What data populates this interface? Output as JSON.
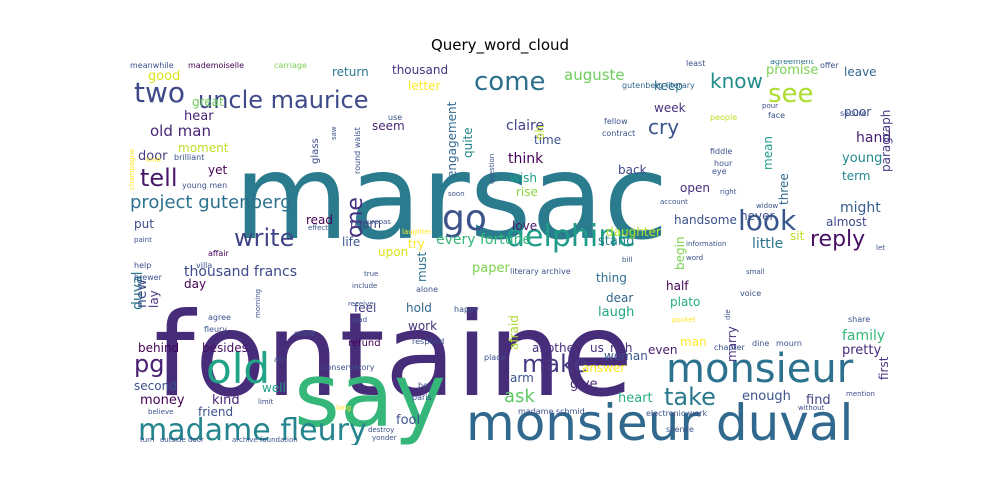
{
  "figure": {
    "title": "Query_word_cloud"
  },
  "palette": [
    "#440154",
    "#482878",
    "#3e4989",
    "#31688e",
    "#26828e",
    "#1f9e89",
    "#35b779",
    "#6ece58",
    "#b5de2b",
    "#fde725"
  ],
  "words": [
    {
      "text": "marsac",
      "weight": 100,
      "color": "#2a7b8e"
    },
    {
      "text": "fontaine",
      "weight": 96,
      "color": "#472c7a"
    },
    {
      "text": "say",
      "weight": 64,
      "color": "#35b779"
    },
    {
      "text": "monsieur duval",
      "weight": 36,
      "color": "#31688e"
    },
    {
      "text": "old",
      "weight": 30,
      "color": "#20a386"
    },
    {
      "text": "monsieur",
      "weight": 30,
      "color": "#2c728e"
    },
    {
      "text": "go",
      "weight": 26,
      "color": "#3b528b"
    },
    {
      "text": "madame fleury",
      "weight": 24,
      "color": "#25858e"
    },
    {
      "text": "delphine",
      "weight": 24,
      "color": "#1e9c89"
    },
    {
      "text": "look",
      "weight": 22,
      "color": "#39568c"
    },
    {
      "text": "uncle maurice",
      "weight": 20,
      "color": "#3e4a89"
    },
    {
      "text": "come",
      "weight": 20,
      "color": "#2d708e"
    },
    {
      "text": "see",
      "weight": 20,
      "color": "#addc30"
    },
    {
      "text": "two",
      "weight": 20,
      "color": "#3e4989"
    },
    {
      "text": "make",
      "weight": 18,
      "color": "#453781"
    },
    {
      "text": "take",
      "weight": 18,
      "color": "#2a788e"
    },
    {
      "text": "pg",
      "weight": 18,
      "color": "#481f70"
    },
    {
      "text": "write",
      "weight": 18,
      "color": "#404588"
    },
    {
      "text": "tell",
      "weight": 18,
      "color": "#481769"
    },
    {
      "text": "one",
      "weight": 16,
      "color": "#46327e"
    },
    {
      "text": "reply",
      "weight": 16,
      "color": "#471063"
    },
    {
      "text": "know",
      "weight": 16,
      "color": "#228c8d"
    },
    {
      "text": "cry",
      "weight": 16,
      "color": "#3b528b"
    },
    {
      "text": "ask",
      "weight": 14,
      "color": "#5ec962"
    },
    {
      "text": "project gutenberg",
      "weight": 14,
      "color": "#2c728e"
    },
    {
      "text": "old man",
      "weight": 12,
      "color": "#482475"
    },
    {
      "text": "auguste",
      "weight": 12,
      "color": "#6ccd5a"
    },
    {
      "text": "promise",
      "weight": 11,
      "color": "#7ad151"
    },
    {
      "text": "thousand francs",
      "weight": 11,
      "color": "#3e4a89"
    },
    {
      "text": "every fortune",
      "weight": 11,
      "color": "#35b779"
    },
    {
      "text": "think",
      "weight": 11,
      "color": "#440154"
    },
    {
      "text": "claire",
      "weight": 11,
      "color": "#414487"
    },
    {
      "text": "hand",
      "weight": 11,
      "color": "#482173"
    },
    {
      "text": "good",
      "weight": 11,
      "color": "#dde318"
    },
    {
      "text": "hear",
      "weight": 11,
      "color": "#482576"
    },
    {
      "text": "door",
      "weight": 11,
      "color": "#433e85"
    },
    {
      "text": "little",
      "weight": 11,
      "color": "#2b748e"
    },
    {
      "text": "might",
      "weight": 11,
      "color": "#355e8d"
    },
    {
      "text": "young",
      "weight": 11,
      "color": "#23898e"
    },
    {
      "text": "family",
      "weight": 11,
      "color": "#37b878"
    },
    {
      "text": "give",
      "weight": 11,
      "color": "#482878"
    },
    {
      "text": "money",
      "weight": 11,
      "color": "#440154"
    },
    {
      "text": "kind",
      "weight": 11,
      "color": "#482878"
    },
    {
      "text": "stand",
      "weight": 11,
      "color": "#26828e"
    },
    {
      "text": "paper",
      "weight": 11,
      "color": "#7fd34e"
    },
    {
      "text": "laugh",
      "weight": 11,
      "color": "#22a785"
    },
    {
      "text": "enough",
      "weight": 11,
      "color": "#3b528b"
    },
    {
      "text": "find",
      "weight": 11,
      "color": "#414487"
    },
    {
      "text": "pretty",
      "weight": 11,
      "color": "#472a7a"
    },
    {
      "text": "heart",
      "weight": 11,
      "color": "#2ab07f"
    },
    {
      "text": "fool",
      "weight": 11,
      "color": "#3b528b"
    },
    {
      "text": "duval",
      "weight": 11,
      "color": "#2a788e"
    },
    {
      "text": "new",
      "weight": 11,
      "color": "#3e4989"
    },
    {
      "text": "love",
      "weight": 11,
      "color": "#481467"
    },
    {
      "text": "return",
      "weight": 10,
      "color": "#2a788e"
    },
    {
      "text": "thousand",
      "weight": 10,
      "color": "#46327e"
    },
    {
      "text": "leave",
      "weight": 10,
      "color": "#31688e"
    },
    {
      "text": "keep",
      "weight": 10,
      "color": "#2d708e"
    },
    {
      "text": "poor",
      "weight": 10,
      "color": "#3b528b"
    },
    {
      "text": "great",
      "weight": 10,
      "color": "#6ece58"
    },
    {
      "text": "seem",
      "weight": 10,
      "color": "#482878"
    },
    {
      "text": "time",
      "weight": 10,
      "color": "#3b528b"
    },
    {
      "text": "wish",
      "weight": 10,
      "color": "#1f9e89"
    },
    {
      "text": "rise",
      "weight": 10,
      "color": "#8fd744"
    },
    {
      "text": "quite",
      "weight": 10,
      "color": "#25848e"
    },
    {
      "text": "engagement",
      "weight": 10,
      "color": "#31688e"
    },
    {
      "text": "moment",
      "weight": 10,
      "color": "#bddf26"
    },
    {
      "text": "yet",
      "weight": 10,
      "color": "#440154"
    },
    {
      "text": "back",
      "weight": 10,
      "color": "#3e4989"
    },
    {
      "text": "open",
      "weight": 10,
      "color": "#472c7a"
    },
    {
      "text": "never",
      "weight": 10,
      "color": "#3b528b"
    },
    {
      "text": "sit",
      "weight": 10,
      "color": "#bddf26"
    },
    {
      "text": "almost",
      "weight": 10,
      "color": "#3e4989"
    },
    {
      "text": "three",
      "weight": 10,
      "color": "#31688e"
    },
    {
      "text": "mean",
      "weight": 10,
      "color": "#1f9e89"
    },
    {
      "text": "term",
      "weight": 10,
      "color": "#23898e"
    },
    {
      "text": "paragraph",
      "weight": 10,
      "color": "#443a83"
    },
    {
      "text": "week",
      "weight": 10,
      "color": "#46327e"
    },
    {
      "text": "room",
      "weight": 10,
      "color": "#414487"
    },
    {
      "text": "try",
      "weight": 10,
      "color": "#fde725"
    },
    {
      "text": "put",
      "weight": 10,
      "color": "#3e4989"
    },
    {
      "text": "read",
      "weight": 10,
      "color": "#440154"
    },
    {
      "text": "life",
      "weight": 10,
      "color": "#39568c"
    },
    {
      "text": "upon",
      "weight": 10,
      "color": "#dde318"
    },
    {
      "text": "must",
      "weight": 10,
      "color": "#2c728e"
    },
    {
      "text": "daughter",
      "weight": 10,
      "color": "#b5de2b"
    },
    {
      "text": "handsome",
      "weight": 10,
      "color": "#3b528b"
    },
    {
      "text": "begin",
      "weight": 10,
      "color": "#7ad151"
    },
    {
      "text": "half",
      "weight": 10,
      "color": "#440154"
    },
    {
      "text": "day",
      "weight": 10,
      "color": "#440154"
    },
    {
      "text": "feel",
      "weight": 10,
      "color": "#433e85"
    },
    {
      "text": "hold",
      "weight": 10,
      "color": "#31688e"
    },
    {
      "text": "work",
      "weight": 10,
      "color": "#46327e"
    },
    {
      "text": "thing",
      "weight": 10,
      "color": "#2e6e8e"
    },
    {
      "text": "dear",
      "weight": 10,
      "color": "#31688e"
    },
    {
      "text": "plato",
      "weight": 10,
      "color": "#27ad81"
    },
    {
      "text": "marry",
      "weight": 10,
      "color": "#46327e"
    },
    {
      "text": "afraid",
      "weight": 10,
      "color": "#addc30"
    },
    {
      "text": "answer",
      "weight": 10,
      "color": "#fde725"
    },
    {
      "text": "woman",
      "weight": 10,
      "color": "#3b528b"
    },
    {
      "text": "even",
      "weight": 10,
      "color": "#481f70"
    },
    {
      "text": "man",
      "weight": 10,
      "color": "#fde725"
    },
    {
      "text": "first",
      "weight": 10,
      "color": "#46327e"
    },
    {
      "text": "another",
      "weight": 10,
      "color": "#46327e"
    },
    {
      "text": "us",
      "weight": 10,
      "color": "#46327e"
    },
    {
      "text": "rich",
      "weight": 10,
      "color": "#46327e"
    },
    {
      "text": "arm",
      "weight": 10,
      "color": "#3b528b"
    },
    {
      "text": "behind",
      "weight": 9,
      "color": "#440154"
    },
    {
      "text": "besides",
      "weight": 9,
      "color": "#471063"
    },
    {
      "text": "second",
      "weight": 9,
      "color": "#3b528b"
    },
    {
      "text": "well",
      "weight": 9,
      "color": "#1f9e89"
    },
    {
      "text": "friend",
      "weight": 9,
      "color": "#3b528b"
    },
    {
      "text": "lay",
      "weight": 9,
      "color": "#46327e"
    },
    {
      "text": "letter",
      "weight": 9,
      "color": "#fde725"
    },
    {
      "text": "meanwhile",
      "weight": 5,
      "color": "#3b528b"
    },
    {
      "text": "mademoiselle",
      "weight": 5,
      "color": "#440154"
    },
    {
      "text": "carriage",
      "weight": 5,
      "color": "#7ad151"
    },
    {
      "text": "agreement",
      "weight": 5,
      "color": "#2c728e"
    },
    {
      "text": "offer",
      "weight": 5,
      "color": "#3b528b"
    },
    {
      "text": "least",
      "weight": 5,
      "color": "#3b528b"
    },
    {
      "text": "gutenberg literary",
      "weight": 5,
      "color": "#31688e"
    },
    {
      "text": "round waist",
      "weight": 5,
      "color": "#3b528b"
    },
    {
      "text": "glass",
      "weight": 6,
      "color": "#3e4989"
    },
    {
      "text": "saw",
      "weight": 5,
      "color": "#3b528b"
    },
    {
      "text": "use",
      "weight": 5,
      "color": "#3b528b"
    },
    {
      "text": "oh",
      "weight": 7,
      "color": "#bddf26"
    },
    {
      "text": "fellow",
      "weight": 5,
      "color": "#3b528b"
    },
    {
      "text": "people",
      "weight": 5,
      "color": "#bddf26"
    },
    {
      "text": "pour",
      "weight": 5,
      "color": "#3b528b"
    },
    {
      "text": "face",
      "weight": 5,
      "color": "#3b528b"
    },
    {
      "text": "secure",
      "weight": 5,
      "color": "#3b528b"
    },
    {
      "text": "contract",
      "weight": 5,
      "color": "#3b528b"
    },
    {
      "text": "fiddle",
      "weight": 5,
      "color": "#3b528b"
    },
    {
      "text": "hour",
      "weight": 5,
      "color": "#3b528b"
    },
    {
      "text": "eye",
      "weight": 5,
      "color": "#3b528b"
    },
    {
      "text": "brilliant",
      "weight": 5,
      "color": "#3b528b"
    },
    {
      "text": "champagne",
      "weight": 4,
      "color": "#fde725"
    },
    {
      "text": "kind",
      "weight": 4,
      "color": "#fde725"
    },
    {
      "text": "young men",
      "weight": 5,
      "color": "#3b528b"
    },
    {
      "text": "question",
      "weight": 4,
      "color": "#3b528b"
    },
    {
      "text": "soon",
      "weight": 5,
      "color": "#3b528b"
    },
    {
      "text": "account",
      "weight": 5,
      "color": "#3b528b"
    },
    {
      "text": "right",
      "weight": 5,
      "color": "#3b528b"
    },
    {
      "text": "widow",
      "weight": 5,
      "color": "#3b528b"
    },
    {
      "text": "effect",
      "weight": 5,
      "color": "#3b528b"
    },
    {
      "text": "maurepas",
      "weight": 5,
      "color": "#3b528b"
    },
    {
      "text": "laughter",
      "weight": 5,
      "color": "#fde725"
    },
    {
      "text": "paint",
      "weight": 5,
      "color": "#3b528b"
    },
    {
      "text": "affair",
      "weight": 5,
      "color": "#440154"
    },
    {
      "text": "help",
      "weight": 5,
      "color": "#3b528b"
    },
    {
      "text": "villa",
      "weight": 5,
      "color": "#3b528b"
    },
    {
      "text": "brewer",
      "weight": 5,
      "color": "#3b528b"
    },
    {
      "text": "literary archive",
      "weight": 5,
      "color": "#3b528b"
    },
    {
      "text": "bill",
      "weight": 5,
      "color": "#3b528b"
    },
    {
      "text": "word",
      "weight": 5,
      "color": "#3b528b"
    },
    {
      "text": "information",
      "weight": 5,
      "color": "#3b528b"
    },
    {
      "text": "let",
      "weight": 5,
      "color": "#3b528b"
    },
    {
      "text": "true",
      "weight": 5,
      "color": "#3b528b"
    },
    {
      "text": "include",
      "weight": 5,
      "color": "#3b528b"
    },
    {
      "text": "receive",
      "weight": 5,
      "color": "#3b528b"
    },
    {
      "text": "glad",
      "weight": 5,
      "color": "#3b528b"
    },
    {
      "text": "alone",
      "weight": 5,
      "color": "#3b528b"
    },
    {
      "text": "happy",
      "weight": 5,
      "color": "#3b528b"
    },
    {
      "text": "small",
      "weight": 5,
      "color": "#3b528b"
    },
    {
      "text": "voice",
      "weight": 5,
      "color": "#3b528b"
    },
    {
      "text": "die",
      "weight": 5,
      "color": "#3b528b"
    },
    {
      "text": "pocket",
      "weight": 5,
      "color": "#fde725"
    },
    {
      "text": "share",
      "weight": 5,
      "color": "#3b528b"
    },
    {
      "text": "morning",
      "weight": 5,
      "color": "#3b528b"
    },
    {
      "text": "agree",
      "weight": 5,
      "color": "#3b528b"
    },
    {
      "text": "fleury",
      "weight": 5,
      "color": "#3b528b"
    },
    {
      "text": "smile",
      "weight": 5,
      "color": "#3b528b"
    },
    {
      "text": "refund",
      "weight": 6,
      "color": "#440154"
    },
    {
      "text": "respond",
      "weight": 5,
      "color": "#3b528b"
    },
    {
      "text": "air",
      "weight": 5,
      "color": "#3b528b"
    },
    {
      "text": "conservatory",
      "weight": 5,
      "color": "#3b528b"
    },
    {
      "text": "place",
      "weight": 5,
      "color": "#3b528b"
    },
    {
      "text": "chapter",
      "weight": 5,
      "color": "#3b528b"
    },
    {
      "text": "dine",
      "weight": 5,
      "color": "#3b528b"
    },
    {
      "text": "mourn",
      "weight": 5,
      "color": "#3b528b"
    },
    {
      "text": "boy",
      "weight": 5,
      "color": "#3b528b"
    },
    {
      "text": "paris",
      "weight": 5,
      "color": "#3b528b"
    },
    {
      "text": "mention",
      "weight": 5,
      "color": "#3b528b"
    },
    {
      "text": "believe",
      "weight": 5,
      "color": "#3b528b"
    },
    {
      "text": "limit",
      "weight": 5,
      "color": "#3b528b"
    },
    {
      "text": "long",
      "weight": 5,
      "color": "#fde725"
    },
    {
      "text": "madame schmid",
      "weight": 5,
      "color": "#3b528b"
    },
    {
      "text": "electronic work",
      "weight": 5,
      "color": "#3b528b"
    },
    {
      "text": "without",
      "weight": 5,
      "color": "#3b528b"
    },
    {
      "text": "turn",
      "weight": 5,
      "color": "#3b528b"
    },
    {
      "text": "outside door",
      "weight": 5,
      "color": "#3b528b"
    },
    {
      "text": "archive foundation",
      "weight": 5,
      "color": "#3b528b"
    },
    {
      "text": "destroy",
      "weight": 5,
      "color": "#3b528b"
    },
    {
      "text": "yonder",
      "weight": 5,
      "color": "#3b528b"
    },
    {
      "text": "silence",
      "weight": 5,
      "color": "#3b528b"
    }
  ]
}
